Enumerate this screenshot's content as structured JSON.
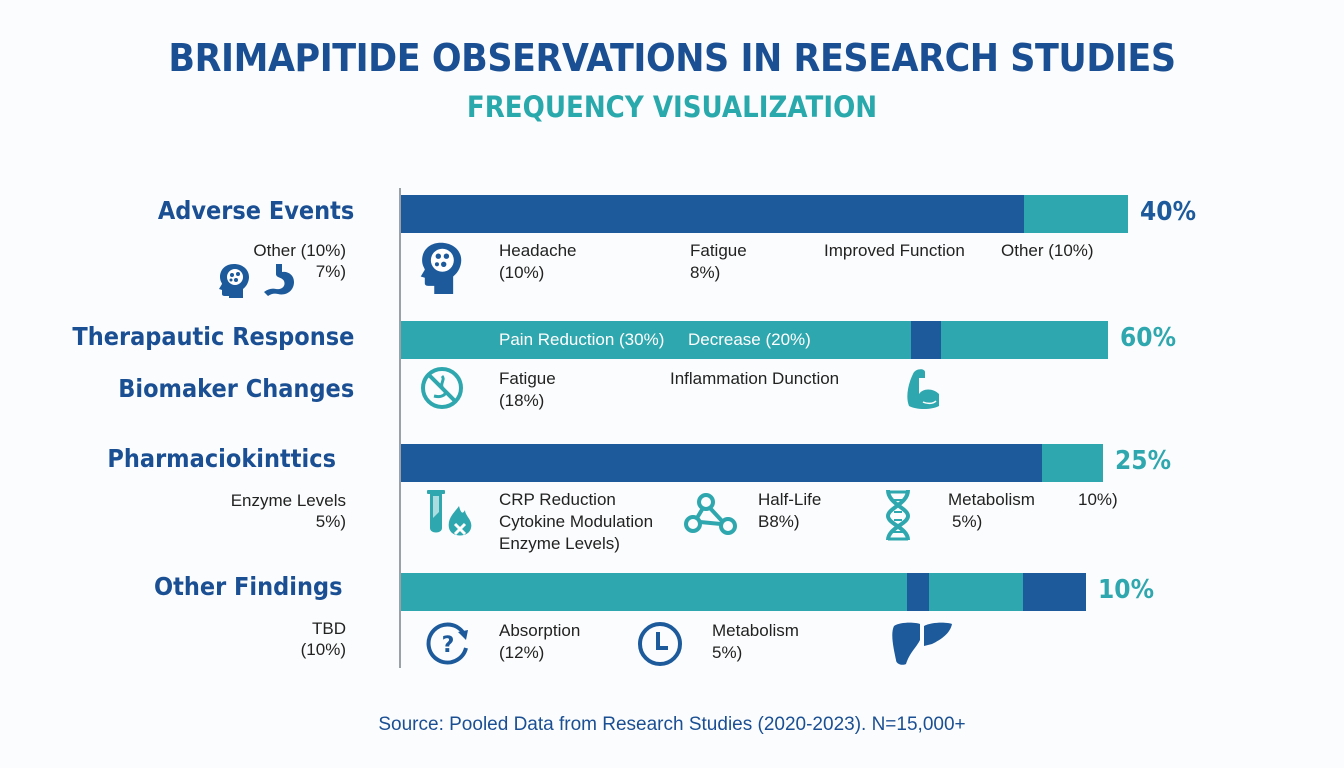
{
  "header": {
    "title": "BRIMAPITIDE OBSERVATIONS IN RESEARCH STUDIES",
    "subtitle": "FREQUENCY VISUALIZATION"
  },
  "colors": {
    "dark_blue": "#1c5a9c",
    "teal": "#2fa7ae",
    "title_blue": "#1b4f93"
  },
  "chart_data": {
    "type": "bar",
    "orientation": "horizontal-stacked",
    "title": "BRIMAPITIDE OBSERVATIONS IN RESEARCH STUDIES",
    "subtitle": "FREQUENCY VISUALIZATION",
    "categories": [
      "Adverse Events",
      "Therapautic Response",
      "Pharmaciokinttics",
      "Other Findings"
    ],
    "extra_labels": [
      "Biomaker Changes"
    ],
    "totals": [
      "40%",
      "60%",
      "25%",
      "10%"
    ],
    "total_values": [
      40,
      60,
      25,
      10
    ],
    "bars": [
      {
        "category": "Adverse Events",
        "segments": [
          {
            "color": "dark_blue",
            "fraction": 0.857
          },
          {
            "color": "teal",
            "fraction": 0.143
          }
        ],
        "length_fraction": 1.0
      },
      {
        "category": "Therapautic Response",
        "segments": [
          {
            "color": "teal",
            "fraction": 0.721
          },
          {
            "color": "dark_blue",
            "fraction": 0.042
          },
          {
            "color": "teal",
            "fraction": 0.237
          }
        ],
        "length_fraction": 0.973
      },
      {
        "category": "Pharmaciokinttics",
        "segments": [
          {
            "color": "dark_blue",
            "fraction": 0.913
          },
          {
            "color": "teal",
            "fraction": 0.087
          }
        ],
        "length_fraction": 0.966
      },
      {
        "category": "Other Findings",
        "segments": [
          {
            "color": "teal",
            "fraction": 0.738
          },
          {
            "color": "dark_blue",
            "fraction": 0.032
          },
          {
            "color": "teal",
            "fraction": 0.137
          },
          {
            "color": "dark_blue",
            "fraction": 0.093
          }
        ],
        "length_fraction": 0.942
      }
    ],
    "xlabel": "",
    "ylabel": "",
    "grid": false,
    "legend": "none"
  },
  "rows": [
    {
      "label": "Adverse Events",
      "pct": "40%",
      "side_note": [
        "Other (10%)",
        "7%)"
      ],
      "side_icons": [
        "brain-head-icon",
        "stomach-icon"
      ],
      "notes": [
        {
          "icon": "brain-head-icon",
          "lines": [
            "Headache",
            "(10%)"
          ]
        },
        {
          "lines": [
            "Fatigue",
            "8%)"
          ]
        },
        {
          "lines": [
            "Improved Function"
          ]
        },
        {
          "lines": [
            "Other (10%)"
          ]
        }
      ]
    },
    {
      "label": "Therapautic Response",
      "pct": "60%",
      "in_bar": [
        "Pain Reduction (30%)",
        "Decrease (20%)"
      ],
      "notes": [
        {
          "icon": "no-nausea-icon",
          "lines": [
            "Fatigue",
            "(18%)"
          ]
        },
        {
          "lines": [
            "Inflammation Dunction"
          ]
        },
        {
          "icon": "muscle-arm-icon"
        }
      ]
    },
    {
      "label": "Biomaker Changes"
    },
    {
      "label": "Pharmaciokinttics",
      "pct": "25%",
      "side_note": [
        "Enzyme Levels",
        "5%)"
      ],
      "notes": [
        {
          "icon": "test-tube-flame-icon",
          "lines": [
            "CRP Reduction",
            "Cytokine Modulation",
            "Enzyme Levels)"
          ]
        },
        {
          "icon": "molecule-icon",
          "lines": [
            "Half-Life",
            "Β8%)"
          ]
        },
        {
          "icon": "dna-icon",
          "lines": [
            "Metabolism",
            "5%)"
          ]
        },
        {
          "lines": [
            "10%)"
          ]
        }
      ]
    },
    {
      "label": "Other Findings",
      "pct": "10%",
      "side_note": [
        "TBD",
        "(10%)"
      ],
      "notes": [
        {
          "icon": "question-cycle-icon",
          "lines": [
            "Absorption",
            "(12%)"
          ]
        },
        {
          "icon": "clock-icon",
          "lines": [
            "Metabolism",
            "5%)"
          ]
        },
        {
          "icon": "liver-icon"
        }
      ]
    }
  ],
  "footer": {
    "source": "Source: Pooled Data from Research Studies (2020-2023). N=15,000+"
  }
}
